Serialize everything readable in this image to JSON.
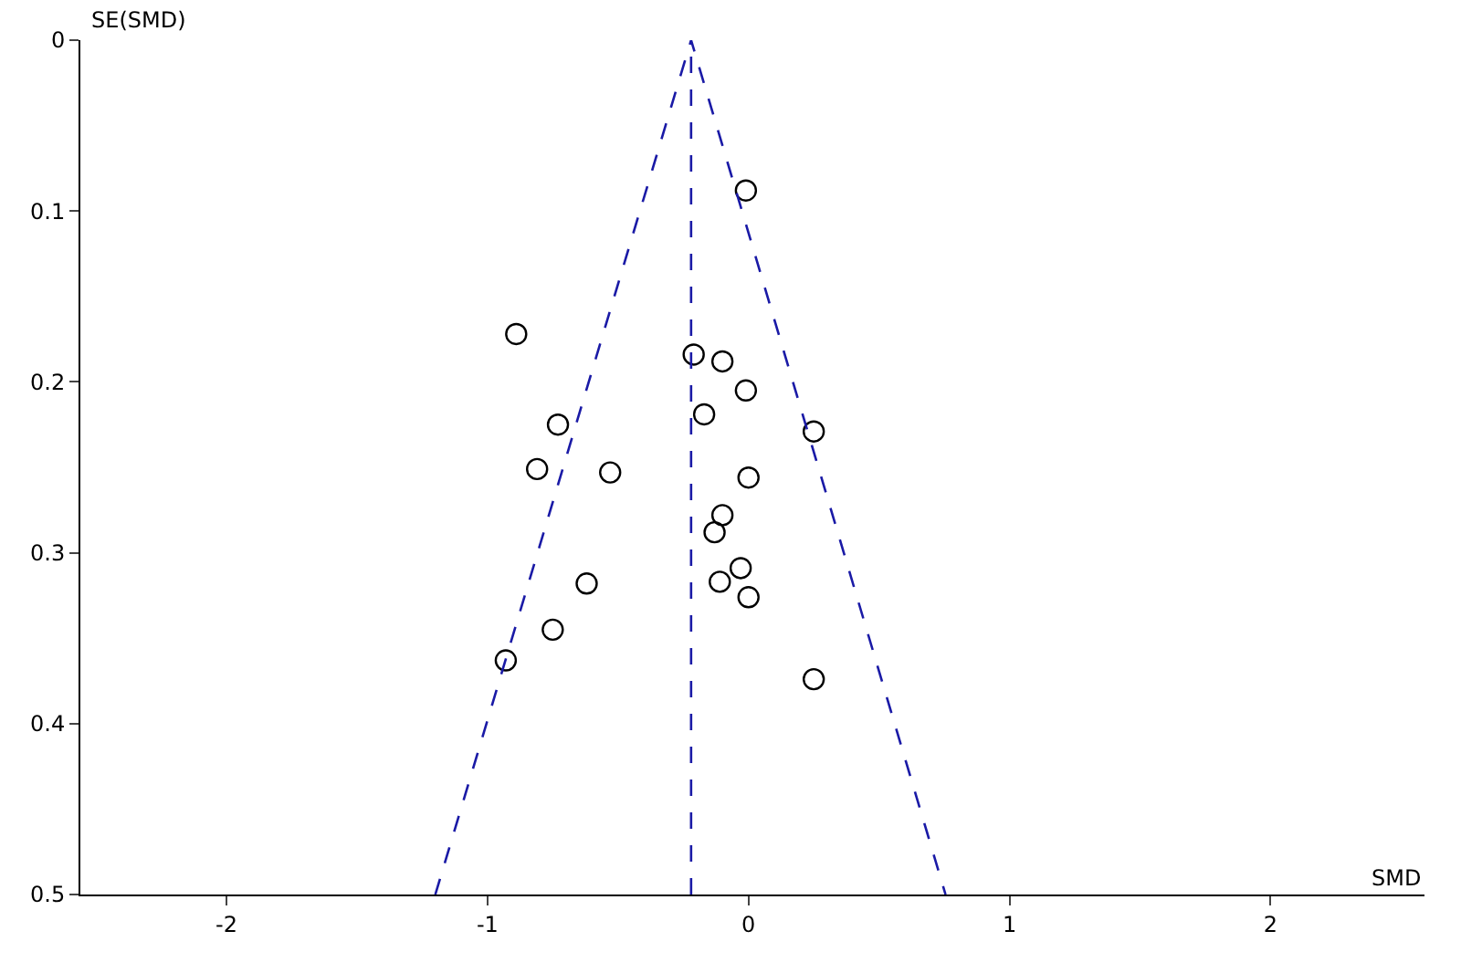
{
  "chart_data": {
    "type": "scatter",
    "xlabel": "SMD",
    "ylabel": "SE(SMD)",
    "xlim": [
      -2.56,
      2.59
    ],
    "ylim": [
      0.5,
      0
    ],
    "xticks": [
      -2,
      -1,
      0,
      1,
      2
    ],
    "yticks": [
      0,
      0.1,
      0.2,
      0.3,
      0.4,
      0.5
    ],
    "grid": false,
    "marker": "circle",
    "series": [
      {
        "color": "#000000",
        "x": [
          -0.01,
          -0.89,
          -0.21,
          -0.1,
          -0.01,
          -0.17,
          -0.73,
          0.25,
          -0.81,
          -0.53,
          0.0,
          -0.1,
          -0.13,
          -0.03,
          -0.62,
          -0.11,
          0.0,
          -0.75,
          -0.93,
          0.25
        ],
        "values": [
          0.088,
          0.172,
          0.184,
          0.188,
          0.205,
          0.219,
          0.225,
          0.229,
          0.251,
          0.253,
          0.256,
          0.278,
          0.288,
          0.309,
          0.318,
          0.317,
          0.326,
          0.345,
          0.363,
          0.374
        ]
      },
      {
        "type": "line",
        "color": "#1a1aa6",
        "line_style": "dashed",
        "marker": "none",
        "x": [
          -1.2,
          -0.22,
          0.755
        ],
        "values": [
          0.5,
          0,
          0.5
        ]
      }
    ],
    "ref_lines": [
      {
        "axis": "x",
        "value": -0.22,
        "color": "#1a1aa6",
        "line_style": "dashed"
      }
    ]
  }
}
